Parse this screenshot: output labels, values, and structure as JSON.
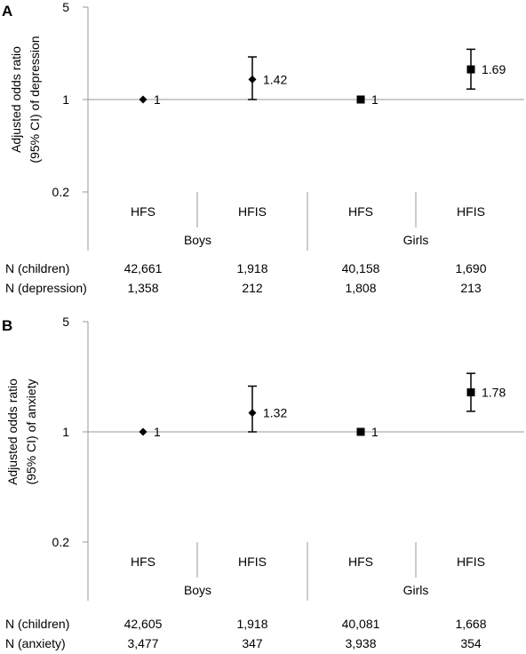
{
  "chart_data": [
    {
      "panel_label": "A",
      "type": "scatter",
      "y_scale": "log",
      "ylim": [
        0.2,
        5
      ],
      "yticks": [
        "0.2",
        "1",
        "5"
      ],
      "ylabel_lines": [
        "Adjusted odds ratio",
        "(95% CI) of depression"
      ],
      "categories": [
        "HFS",
        "HFIS",
        "HFS",
        "HFIS"
      ],
      "groups": [
        "Boys",
        "Girls"
      ],
      "points": [
        {
          "group": "Boys",
          "category": "HFS",
          "or": 1,
          "label": "1",
          "marker": "diamond",
          "ci": null
        },
        {
          "group": "Boys",
          "category": "HFIS",
          "or": 1.42,
          "label": "1.42",
          "marker": "diamond",
          "ci": [
            1.0,
            2.1
          ]
        },
        {
          "group": "Girls",
          "category": "HFS",
          "or": 1,
          "label": "1",
          "marker": "square",
          "ci": null
        },
        {
          "group": "Girls",
          "category": "HFIS",
          "or": 1.69,
          "label": "1.69",
          "marker": "square",
          "ci": [
            1.2,
            2.4
          ]
        }
      ],
      "table": [
        {
          "label": "N (children)",
          "values": [
            "42,661",
            "1,918",
            "40,158",
            "1,690"
          ]
        },
        {
          "label": "N (depression)",
          "values": [
            "1,358",
            "212",
            "1,808",
            "213"
          ]
        }
      ]
    },
    {
      "panel_label": "B",
      "type": "scatter",
      "y_scale": "log",
      "ylim": [
        0.2,
        5
      ],
      "yticks": [
        "0.2",
        "1",
        "5"
      ],
      "ylabel_lines": [
        "Adjusted odds ratio",
        "(95% CI) of anxiety"
      ],
      "categories": [
        "HFS",
        "HFIS",
        "HFS",
        "HFIS"
      ],
      "groups": [
        "Boys",
        "Girls"
      ],
      "points": [
        {
          "group": "Boys",
          "category": "HFS",
          "or": 1,
          "label": "1",
          "marker": "diamond",
          "ci": null
        },
        {
          "group": "Boys",
          "category": "HFIS",
          "or": 1.32,
          "label": "1.32",
          "marker": "diamond",
          "ci": [
            1.0,
            1.95
          ]
        },
        {
          "group": "Girls",
          "category": "HFS",
          "or": 1,
          "label": "1",
          "marker": "square",
          "ci": null
        },
        {
          "group": "Girls",
          "category": "HFIS",
          "or": 1.78,
          "label": "1.78",
          "marker": "square",
          "ci": [
            1.35,
            2.35
          ]
        }
      ],
      "table": [
        {
          "label": "N (children)",
          "values": [
            "42,605",
            "1,918",
            "40,081",
            "1,668"
          ]
        },
        {
          "label": "N (anxiety)",
          "values": [
            "3,477",
            "347",
            "3,938",
            "354"
          ]
        }
      ]
    }
  ]
}
